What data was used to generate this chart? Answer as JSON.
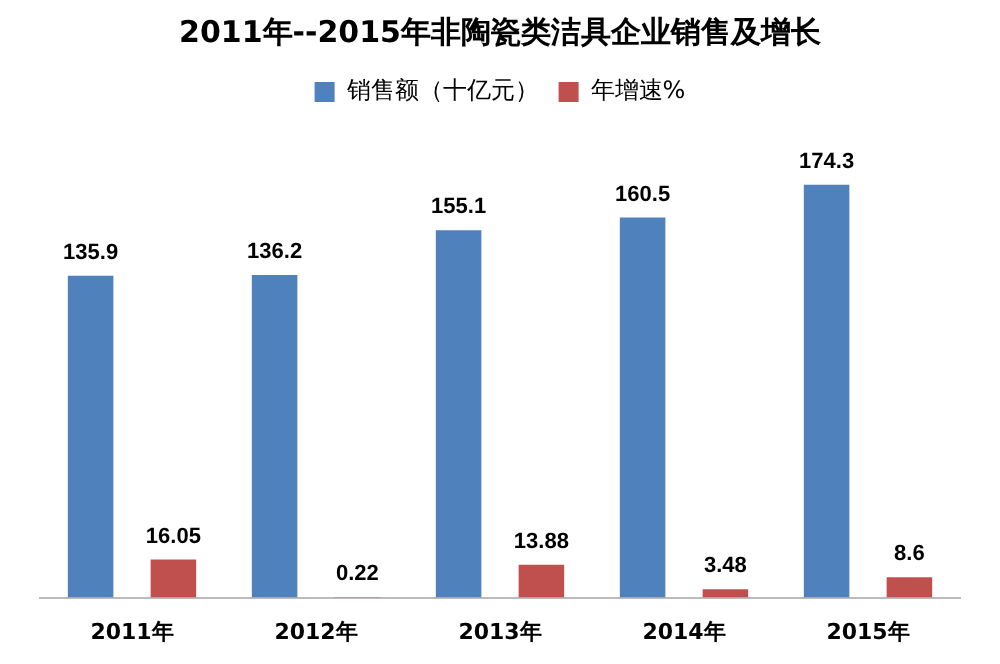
{
  "chart_data": {
    "type": "bar",
    "title": "2011年--2015年非陶瓷类洁具企业销售及增长",
    "categories": [
      "2011年",
      "2012年",
      "2013年",
      "2014年",
      "2015年"
    ],
    "series": [
      {
        "name": "销售额（十亿元）",
        "color": "#4f81bd",
        "values": [
          135.9,
          136.2,
          155.1,
          160.5,
          174.3
        ]
      },
      {
        "name": "年增速%",
        "color": "#c0504d",
        "values": [
          16.05,
          0.22,
          13.88,
          3.48,
          8.6
        ]
      }
    ],
    "data_labels": true,
    "legend": "top",
    "grid": false
  }
}
